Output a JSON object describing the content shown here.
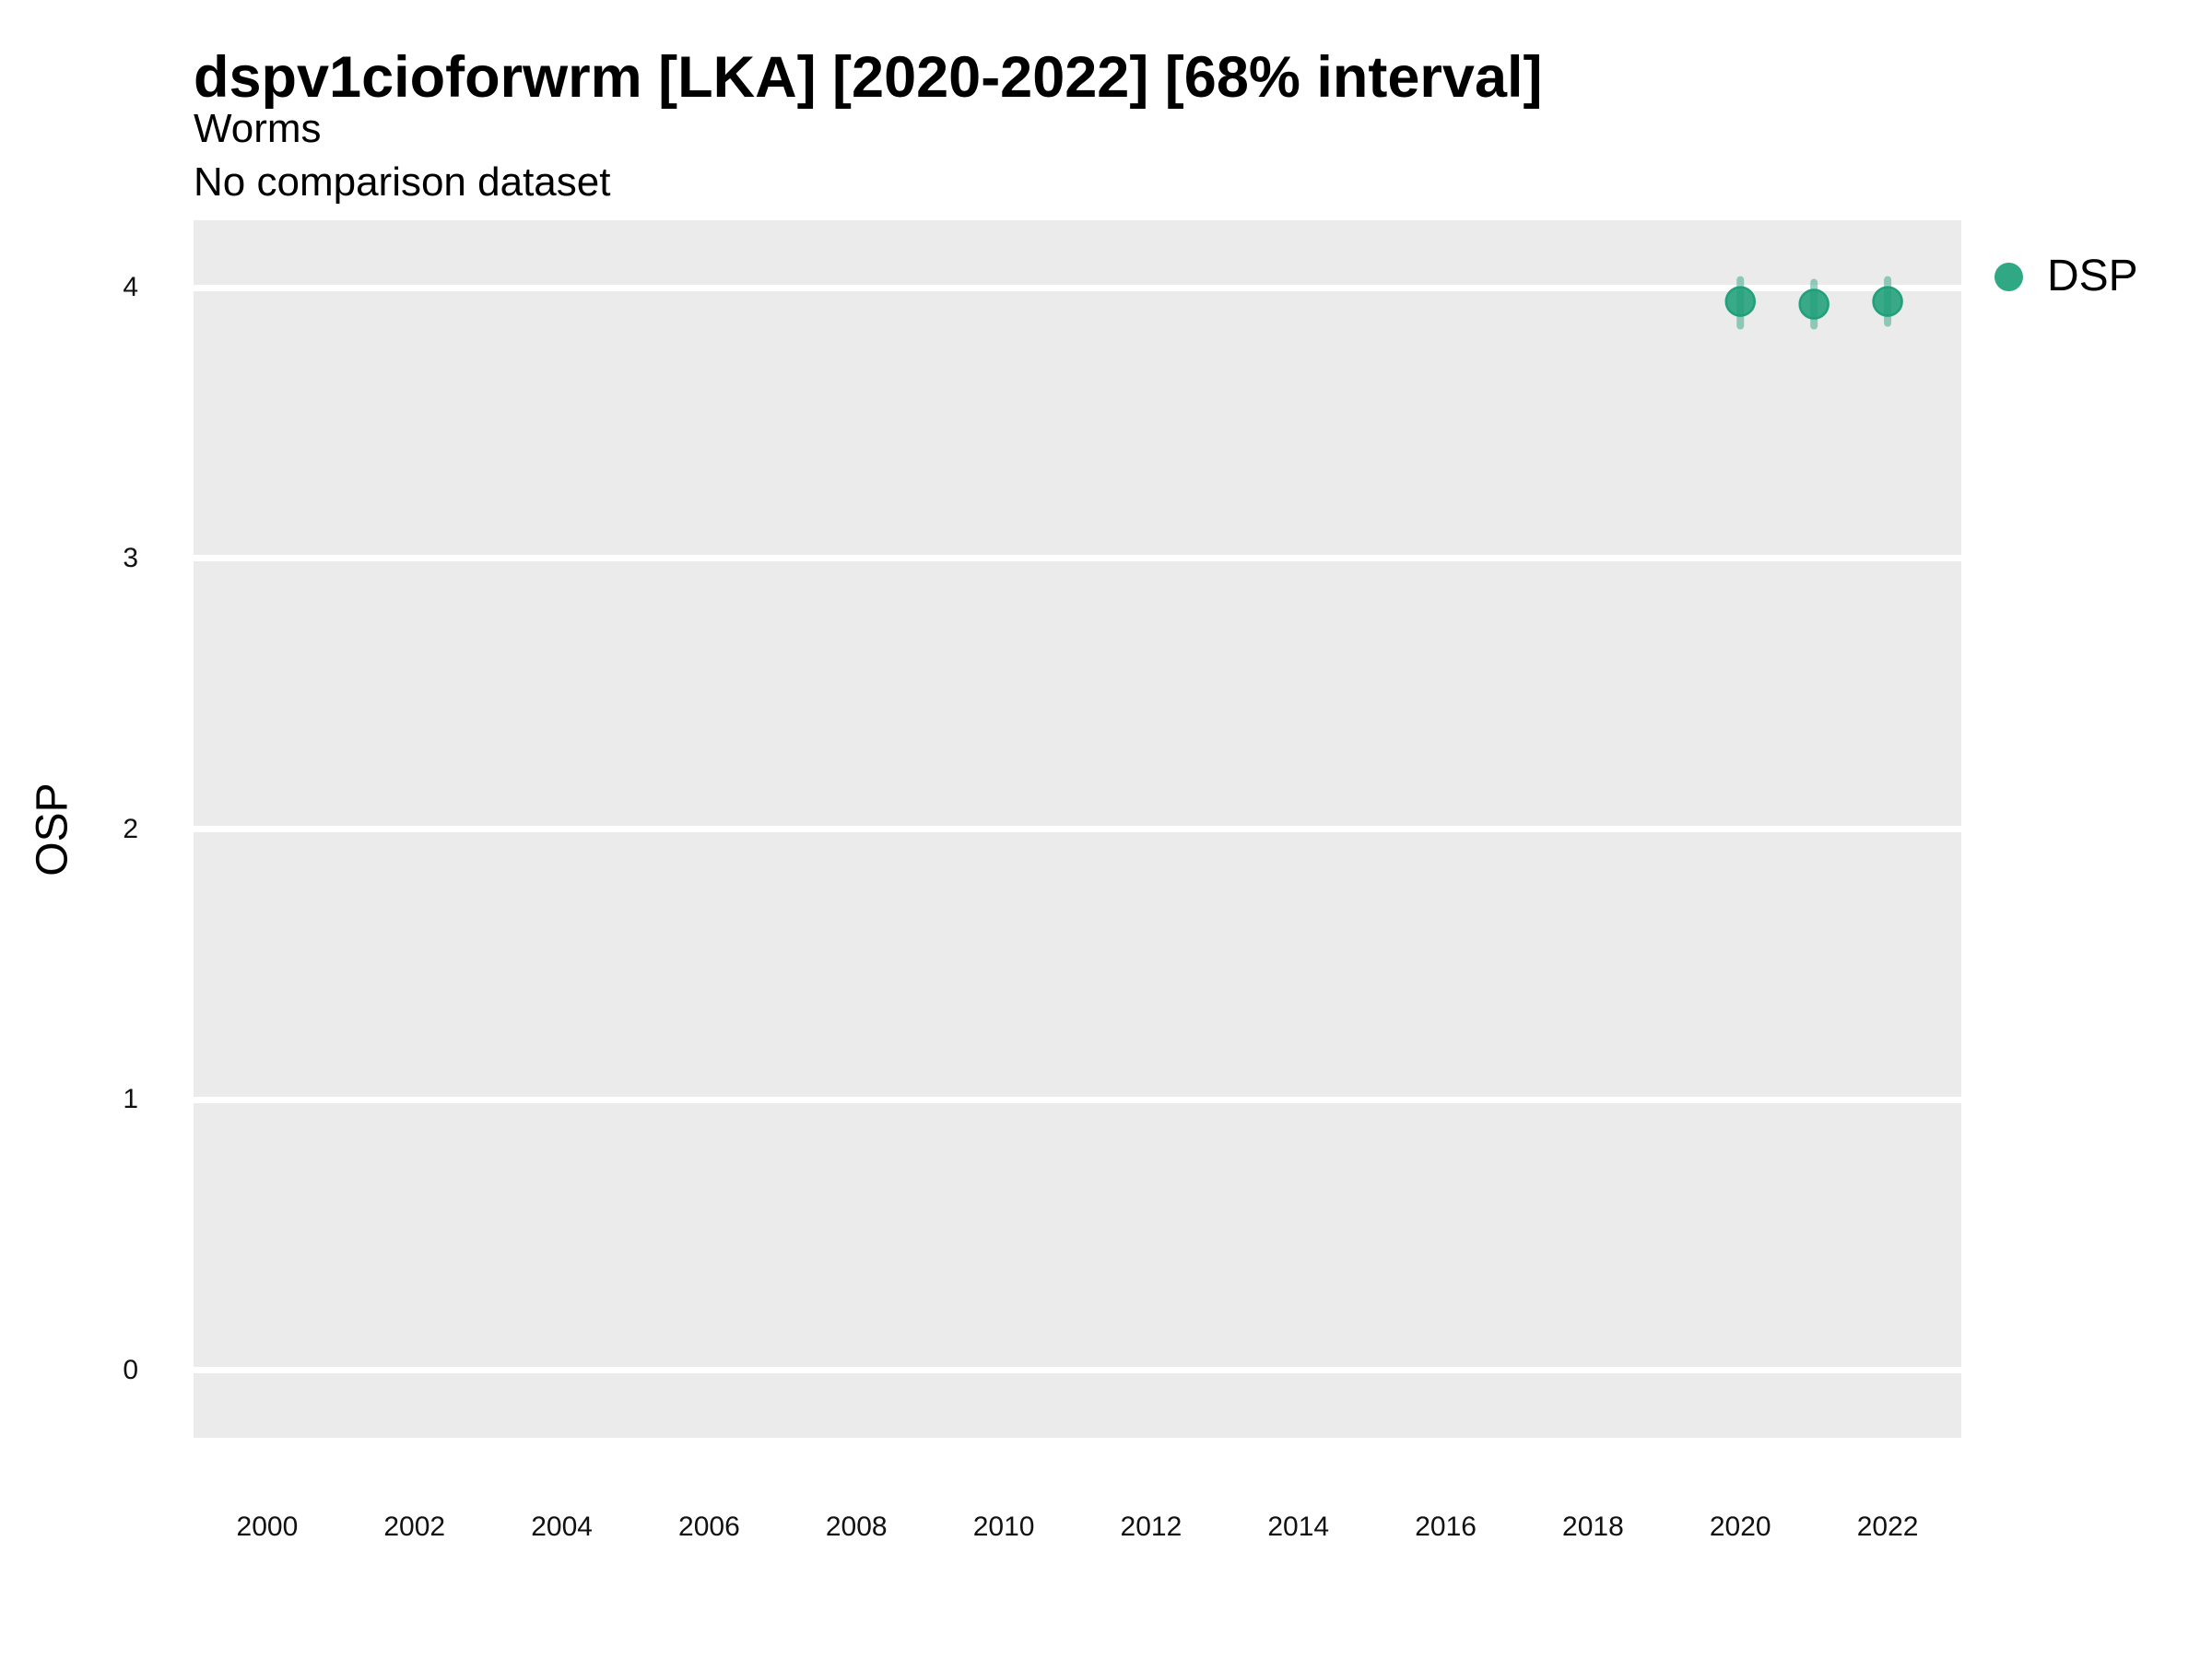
{
  "chart_data": {
    "type": "scatter",
    "title": "dspv1cioforwrm [LKA] [2020-2022] [68% interval]",
    "subtitle": "Worms",
    "caption": "No comparison dataset",
    "xlabel": "",
    "ylabel": "OSP",
    "xlim": [
      1999,
      2023
    ],
    "ylim": [
      -0.25,
      4.25
    ],
    "x_ticks": [
      2000,
      2002,
      2004,
      2006,
      2008,
      2010,
      2012,
      2014,
      2016,
      2018,
      2020,
      2022
    ],
    "y_ticks": [
      0,
      1,
      2,
      3,
      4
    ],
    "grid": "horizontal-major-only",
    "panel_background": "#EBEBEB",
    "gridline_color": "#FFFFFF",
    "legend": {
      "position": "right-top",
      "entries": [
        {
          "label": "DSP",
          "color": "#1B9E77"
        }
      ]
    },
    "series": [
      {
        "name": "DSP",
        "color": "#1B9E77",
        "marker": "point-with-interval",
        "points": [
          {
            "x": 2020,
            "y": 3.95,
            "y_lo": 3.86,
            "y_hi": 4.03
          },
          {
            "x": 2021,
            "y": 3.94,
            "y_lo": 3.86,
            "y_hi": 4.02
          },
          {
            "x": 2022,
            "y": 3.95,
            "y_lo": 3.87,
            "y_hi": 4.03
          }
        ]
      }
    ]
  },
  "colors": {
    "accent_green": "#1B9E77",
    "panel_bg": "#EBEBEB",
    "gridline": "#FFFFFF",
    "text": "#000000",
    "background": "#FFFFFF"
  }
}
